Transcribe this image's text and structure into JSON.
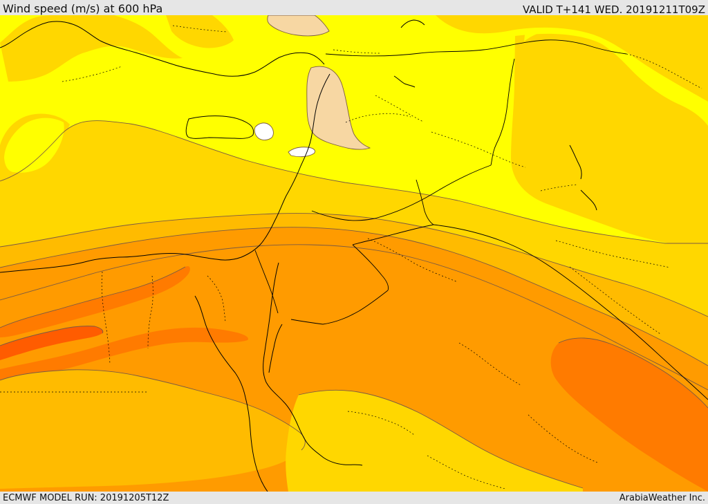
{
  "header": {
    "title": "Wind speed (m/s) at 600 hPa",
    "valid": "VALID T+141 WED. 20191211T09Z"
  },
  "footer": {
    "model_run": "ECMWF MODEL RUN: 20191205T12Z",
    "credit": "ArabiaWeather Inc."
  },
  "colors": {
    "band_white": "#ffffff",
    "band_peach": "#f7d7a3",
    "band_yellow": "#ffff00",
    "band_gold": "#ffd700",
    "band_amber": "#ffbb00",
    "band_orange": "#ff9b00",
    "band_deep_orange": "#ff7b00",
    "band_red_orange": "#ff5c00",
    "contour_line": "#7a5a43",
    "boundary_line": "#000000"
  }
}
